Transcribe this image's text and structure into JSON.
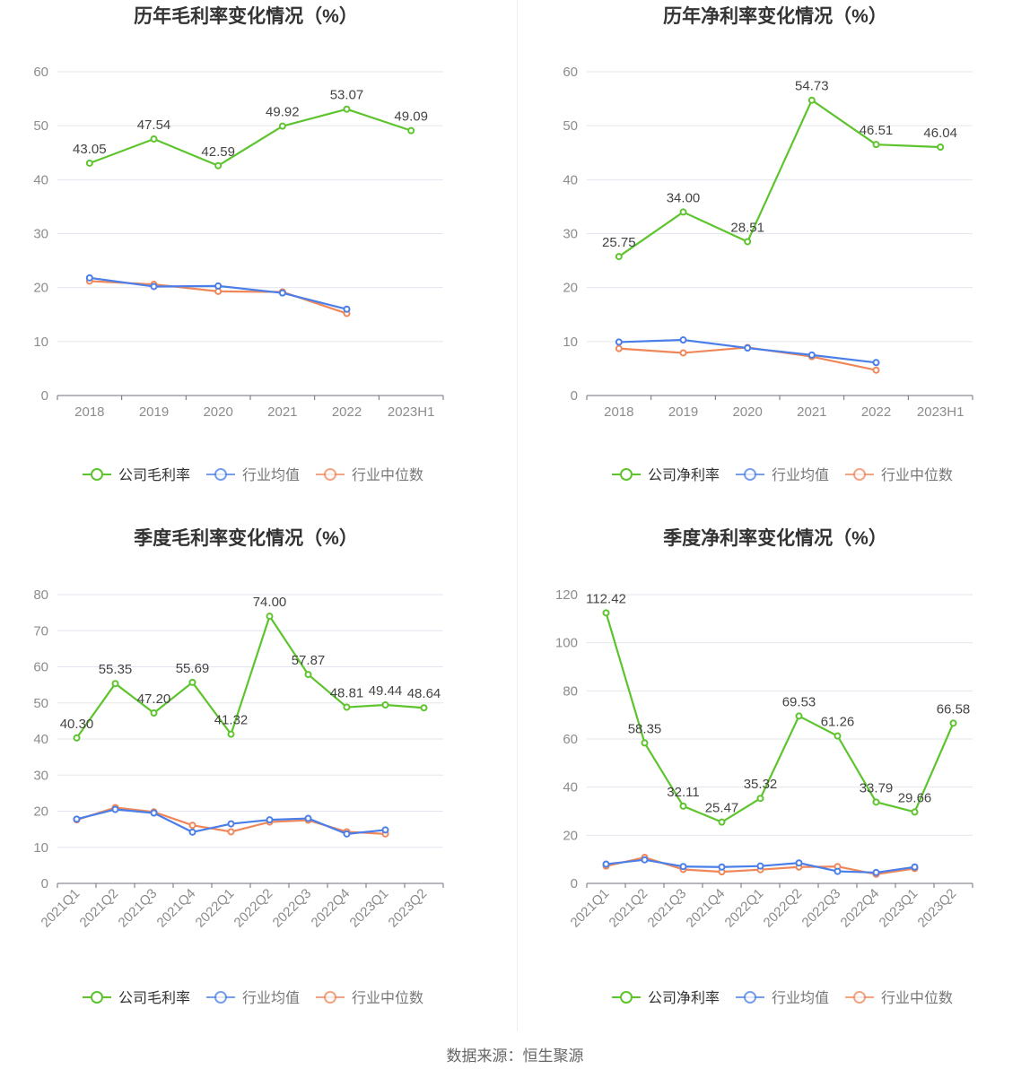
{
  "colors": {
    "company": "#5ec42e",
    "industry_avg": "#4a7ee8",
    "industry_median": "#f0875a",
    "grid": "#e3e6ee",
    "axis_text": "#8c8c8c",
    "title_text": "#333333"
  },
  "legend_icons": [
    "circle-line-icon",
    "circle-line-icon",
    "circle-line-icon"
  ],
  "source_text": "数据来源：恒生聚源",
  "chart_data": [
    {
      "type": "line",
      "title": "历年毛利率变化情况（%）",
      "categories": [
        "2018",
        "2019",
        "2020",
        "2021",
        "2022",
        "2023H1"
      ],
      "ylim": [
        0,
        60
      ],
      "yticks": [
        0,
        10,
        20,
        30,
        40,
        50,
        60
      ],
      "rotate_labels": false,
      "legend_position": "bottom",
      "series": [
        {
          "name": "公司毛利率",
          "key": "company",
          "values": [
            43.05,
            47.54,
            42.59,
            49.92,
            53.07,
            49.09
          ],
          "labels": [
            "43.05",
            "47.54",
            "42.59",
            "49.92",
            "53.07",
            "49.09"
          ]
        },
        {
          "name": "行业均值",
          "key": "industry_avg",
          "values": [
            21.8,
            20.2,
            20.3,
            19.0,
            16.0,
            null
          ]
        },
        {
          "name": "行业中位数",
          "key": "industry_median",
          "values": [
            21.2,
            20.6,
            19.3,
            19.2,
            15.2,
            null
          ]
        }
      ]
    },
    {
      "type": "line",
      "title": "历年净利率变化情况（%）",
      "categories": [
        "2018",
        "2019",
        "2020",
        "2021",
        "2022",
        "2023H1"
      ],
      "ylim": [
        0,
        60
      ],
      "yticks": [
        0,
        10,
        20,
        30,
        40,
        50,
        60
      ],
      "rotate_labels": false,
      "legend_position": "bottom",
      "series": [
        {
          "name": "公司净利率",
          "key": "company",
          "values": [
            25.75,
            34.0,
            28.51,
            54.73,
            46.51,
            46.04
          ],
          "labels": [
            "25.75",
            "34.00",
            "28.51",
            "54.73",
            "46.51",
            "46.04"
          ]
        },
        {
          "name": "行业均值",
          "key": "industry_avg",
          "values": [
            9.9,
            10.3,
            8.8,
            7.5,
            6.1,
            null
          ]
        },
        {
          "name": "行业中位数",
          "key": "industry_median",
          "values": [
            8.7,
            7.9,
            8.9,
            7.2,
            4.7,
            null
          ]
        }
      ]
    },
    {
      "type": "line",
      "title": "季度毛利率变化情况（%）",
      "categories": [
        "2021Q1",
        "2021Q2",
        "2021Q3",
        "2021Q4",
        "2022Q1",
        "2022Q2",
        "2022Q3",
        "2022Q4",
        "2023Q1",
        "2023Q2"
      ],
      "ylim": [
        0,
        80
      ],
      "yticks": [
        0,
        10,
        20,
        30,
        40,
        50,
        60,
        70,
        80
      ],
      "rotate_labels": true,
      "legend_position": "bottom",
      "series": [
        {
          "name": "公司毛利率",
          "key": "company",
          "values": [
            40.3,
            55.35,
            47.2,
            55.69,
            41.32,
            74.0,
            57.87,
            48.81,
            49.44,
            48.64
          ],
          "labels": [
            "40.30",
            "55.35",
            "47.20",
            "55.69",
            "41.32",
            "74.00",
            "57.87",
            "48.81",
            "49.44",
            "48.64"
          ]
        },
        {
          "name": "行业均值",
          "key": "industry_avg",
          "values": [
            17.8,
            20.5,
            19.5,
            14.2,
            16.5,
            17.6,
            18.0,
            13.7,
            14.8,
            null
          ]
        },
        {
          "name": "行业中位数",
          "key": "industry_median",
          "values": [
            17.6,
            21.0,
            19.8,
            16.1,
            14.3,
            17.0,
            17.5,
            14.3,
            13.7,
            null
          ]
        }
      ]
    },
    {
      "type": "line",
      "title": "季度净利率变化情况（%）",
      "categories": [
        "2021Q1",
        "2021Q2",
        "2021Q3",
        "2021Q4",
        "2022Q1",
        "2022Q2",
        "2022Q3",
        "2022Q4",
        "2023Q1",
        "2023Q2"
      ],
      "ylim": [
        0,
        120
      ],
      "yticks": [
        0,
        20,
        40,
        60,
        80,
        100,
        120
      ],
      "rotate_labels": true,
      "legend_position": "bottom",
      "series": [
        {
          "name": "公司净利率",
          "key": "company",
          "values": [
            112.42,
            58.35,
            32.11,
            25.47,
            35.32,
            69.53,
            61.26,
            33.79,
            29.66,
            66.58
          ],
          "labels": [
            "112.42",
            "58.35",
            "32.11",
            "25.47",
            "35.32",
            "69.53",
            "61.26",
            "33.79",
            "29.66",
            "66.58"
          ]
        },
        {
          "name": "行业均值",
          "key": "industry_avg",
          "values": [
            8.0,
            9.8,
            7.0,
            6.8,
            7.2,
            8.5,
            5.0,
            4.5,
            6.8,
            null
          ]
        },
        {
          "name": "行业中位数",
          "key": "industry_median",
          "values": [
            7.2,
            10.8,
            5.8,
            4.8,
            5.7,
            6.8,
            7.0,
            3.8,
            6.2,
            null
          ]
        }
      ]
    }
  ]
}
